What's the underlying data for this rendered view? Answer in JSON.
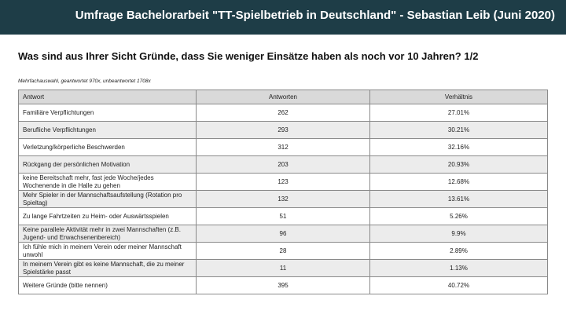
{
  "header": {
    "title": "Umfrage Bachelorarbeit \"TT-Spielbetrieb in Deutschland\" - Sebastian Leib (Juni 2020)",
    "background": "#1e3d47"
  },
  "question": "Was sind aus Ihrer Sicht Gründe, dass Sie weniger Einsätze haben als noch vor 10 Jahren? 1/2",
  "meta": "Mehrfachauswahl, geantwortet 970x, unbeantwortet 1708x",
  "table": {
    "headers": [
      "Antwort",
      "Antworten",
      "Verhältnis"
    ],
    "rows": [
      {
        "answer": "Familiäre Verpflichtungen",
        "count": "262",
        "ratio": "27.01%"
      },
      {
        "answer": "Berufliche Verpflichtungen",
        "count": "293",
        "ratio": "30.21%"
      },
      {
        "answer": "Verletzung/körperliche Beschwerden",
        "count": "312",
        "ratio": "32.16%"
      },
      {
        "answer": "Rückgang der persönlichen Motivation",
        "count": "203",
        "ratio": "20.93%"
      },
      {
        "answer": "keine Bereitschaft mehr, fast jede Woche/jedes Wochenende in die Halle zu gehen",
        "count": "123",
        "ratio": "12.68%"
      },
      {
        "answer": "Mehr Spieler in der Mannschaftsaufstellung (Rotation pro Spieltag)",
        "count": "132",
        "ratio": "13.61%"
      },
      {
        "answer": "Zu lange Fahrtzeiten zu Heim- oder Auswärtsspielen",
        "count": "51",
        "ratio": "5.26%"
      },
      {
        "answer": "Keine parallele Aktivität mehr in zwei Mannschaften (z.B. Jugend- und Erwachsenenbereich)",
        "count": "96",
        "ratio": "9.9%"
      },
      {
        "answer": "Ich fühle mich in meinem Verein oder meiner Mannschaft unwohl",
        "count": "28",
        "ratio": "2.89%"
      },
      {
        "answer": "In meinem Verein gibt es keine Mannschaft, die zu meiner Spielstärke passt",
        "count": "11",
        "ratio": "1.13%"
      },
      {
        "answer": "Weitere Gründe (bitte nennen)",
        "count": "395",
        "ratio": "40.72%"
      }
    ]
  }
}
